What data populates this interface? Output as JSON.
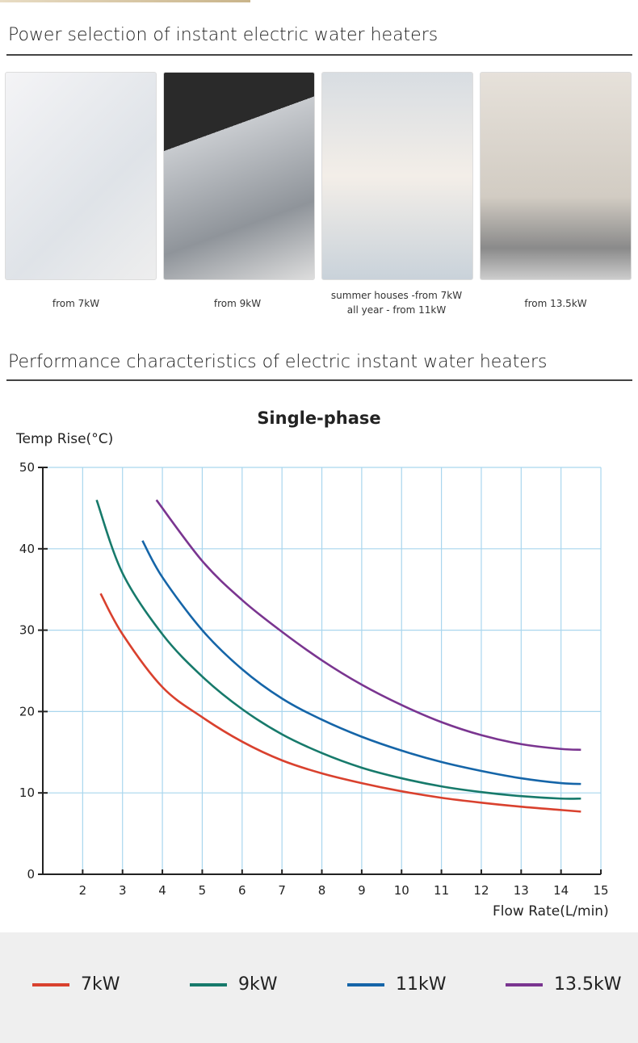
{
  "section1": {
    "title": "Power selection of instant electric water heaters",
    "items": [
      {
        "image": "washbasin-tap",
        "caption": "from 7kW"
      },
      {
        "image": "kitchen-sink",
        "caption": "from 9kW"
      },
      {
        "image": "shower",
        "caption": "summer houses -from 7kW\nall year - from 11kW"
      },
      {
        "image": "bathroom",
        "caption": "from 13.5kW"
      }
    ]
  },
  "section2": {
    "title": "Performance characteristics of electric instant water heaters"
  },
  "chart_data": {
    "type": "line",
    "title": "Single-phase",
    "ylabel": "Temp Rise(°C)",
    "xlabel": "Flow Rate(L/min)",
    "xlim": [
      1,
      15
    ],
    "ylim": [
      0,
      50
    ],
    "grid": true,
    "xticks": [
      "2",
      "3",
      "4",
      "5",
      "6",
      "7",
      "8",
      "9",
      "10",
      "11",
      "12",
      "13",
      "14",
      "15"
    ],
    "yticks": [
      "0",
      "10",
      "20",
      "30",
      "40",
      "50"
    ],
    "legend_position": "bottom",
    "series": [
      {
        "name": "7kW",
        "color": "#d9412e",
        "points": [
          [
            2.45,
            34.5
          ],
          [
            3,
            29.5
          ],
          [
            4,
            23
          ],
          [
            5,
            19.3
          ],
          [
            6,
            16.3
          ],
          [
            7,
            14
          ],
          [
            8,
            12.4
          ],
          [
            9,
            11.2
          ],
          [
            10,
            10.2
          ],
          [
            11,
            9.4
          ],
          [
            12,
            8.8
          ],
          [
            13,
            8.3
          ],
          [
            14,
            7.9
          ],
          [
            14.5,
            7.7
          ]
        ]
      },
      {
        "name": "9kW",
        "color": "#177a6b",
        "points": [
          [
            2.35,
            46
          ],
          [
            3,
            37
          ],
          [
            4,
            29.5
          ],
          [
            5,
            24.3
          ],
          [
            6,
            20.3
          ],
          [
            7,
            17.2
          ],
          [
            8,
            14.9
          ],
          [
            9,
            13.1
          ],
          [
            10,
            11.8
          ],
          [
            11,
            10.8
          ],
          [
            12,
            10.1
          ],
          [
            13,
            9.6
          ],
          [
            14,
            9.3
          ],
          [
            14.5,
            9.3
          ]
        ]
      },
      {
        "name": "11kW",
        "color": "#1565a8",
        "points": [
          [
            3.5,
            41
          ],
          [
            4,
            36.5
          ],
          [
            5,
            30
          ],
          [
            6,
            25.2
          ],
          [
            7,
            21.6
          ],
          [
            8,
            19
          ],
          [
            9,
            16.9
          ],
          [
            10,
            15.2
          ],
          [
            11,
            13.8
          ],
          [
            12,
            12.7
          ],
          [
            13,
            11.8
          ],
          [
            14,
            11.2
          ],
          [
            14.5,
            11.1
          ]
        ]
      },
      {
        "name": "13.5kW",
        "color": "#7a3590",
        "points": [
          [
            3.85,
            46
          ],
          [
            5,
            38.5
          ],
          [
            6,
            33.7
          ],
          [
            7,
            29.8
          ],
          [
            8,
            26.3
          ],
          [
            9,
            23.3
          ],
          [
            10,
            20.8
          ],
          [
            11,
            18.7
          ],
          [
            12,
            17.1
          ],
          [
            13,
            16
          ],
          [
            14,
            15.4
          ],
          [
            14.5,
            15.3
          ]
        ]
      }
    ]
  }
}
